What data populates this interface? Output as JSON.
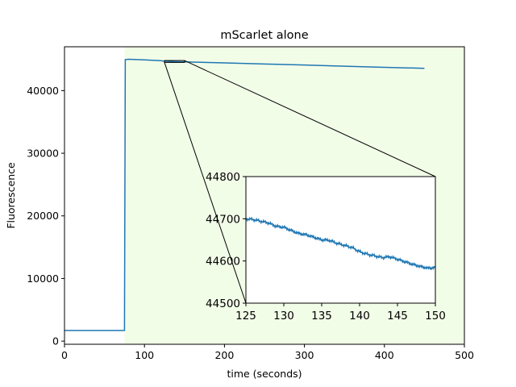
{
  "chart_data": {
    "type": "line",
    "title": "mScarlet alone",
    "xlabel": "time (seconds)",
    "ylabel": "Fluorescence",
    "xlim": [
      0,
      500
    ],
    "ylim": [
      -500,
      47000
    ],
    "xticks": [
      0,
      100,
      200,
      300,
      400,
      500
    ],
    "yticks": [
      0,
      10000,
      20000,
      30000,
      40000
    ],
    "grid": false,
    "background_colors": {
      "before_addition": "#ffffff",
      "after_addition": "#f2fde8"
    },
    "shaded_region_start_x": 75,
    "line_color": "#1f77b4",
    "series": [
      {
        "x": [
          0,
          74,
          75,
          76,
          80,
          90,
          100,
          110,
          120,
          125,
          130,
          140,
          150,
          175,
          200,
          250,
          300,
          350,
          400,
          450
        ],
        "values": [
          1700,
          1700,
          1700,
          44950,
          45000,
          44950,
          44900,
          44850,
          44780,
          44700,
          44670,
          44620,
          44580,
          44500,
          44420,
          44250,
          44080,
          43900,
          43720,
          43550
        ]
      }
    ],
    "zoom_box": {
      "xlim": [
        125,
        150
      ],
      "ylim": [
        44500,
        44800
      ]
    },
    "inset": {
      "xlim": [
        125,
        150
      ],
      "ylim": [
        44500,
        44800
      ],
      "xticks": [
        125,
        130,
        135,
        140,
        145,
        150
      ],
      "yticks": [
        44500,
        44600,
        44700,
        44800
      ],
      "series": {
        "x": [
          125,
          126,
          127,
          128,
          129,
          130,
          131,
          132,
          133,
          134,
          135,
          136,
          137,
          138,
          139,
          140,
          141,
          142,
          143,
          144,
          145,
          146,
          147,
          148,
          149,
          150
        ],
        "values": [
          44700,
          44698,
          44694,
          44690,
          44682,
          44680,
          44672,
          44665,
          44662,
          44656,
          44650,
          44649,
          44642,
          44637,
          44632,
          44622,
          44616,
          44612,
          44608,
          44610,
          44604,
          44598,
          44592,
          44587,
          44583,
          44584
        ]
      }
    }
  }
}
